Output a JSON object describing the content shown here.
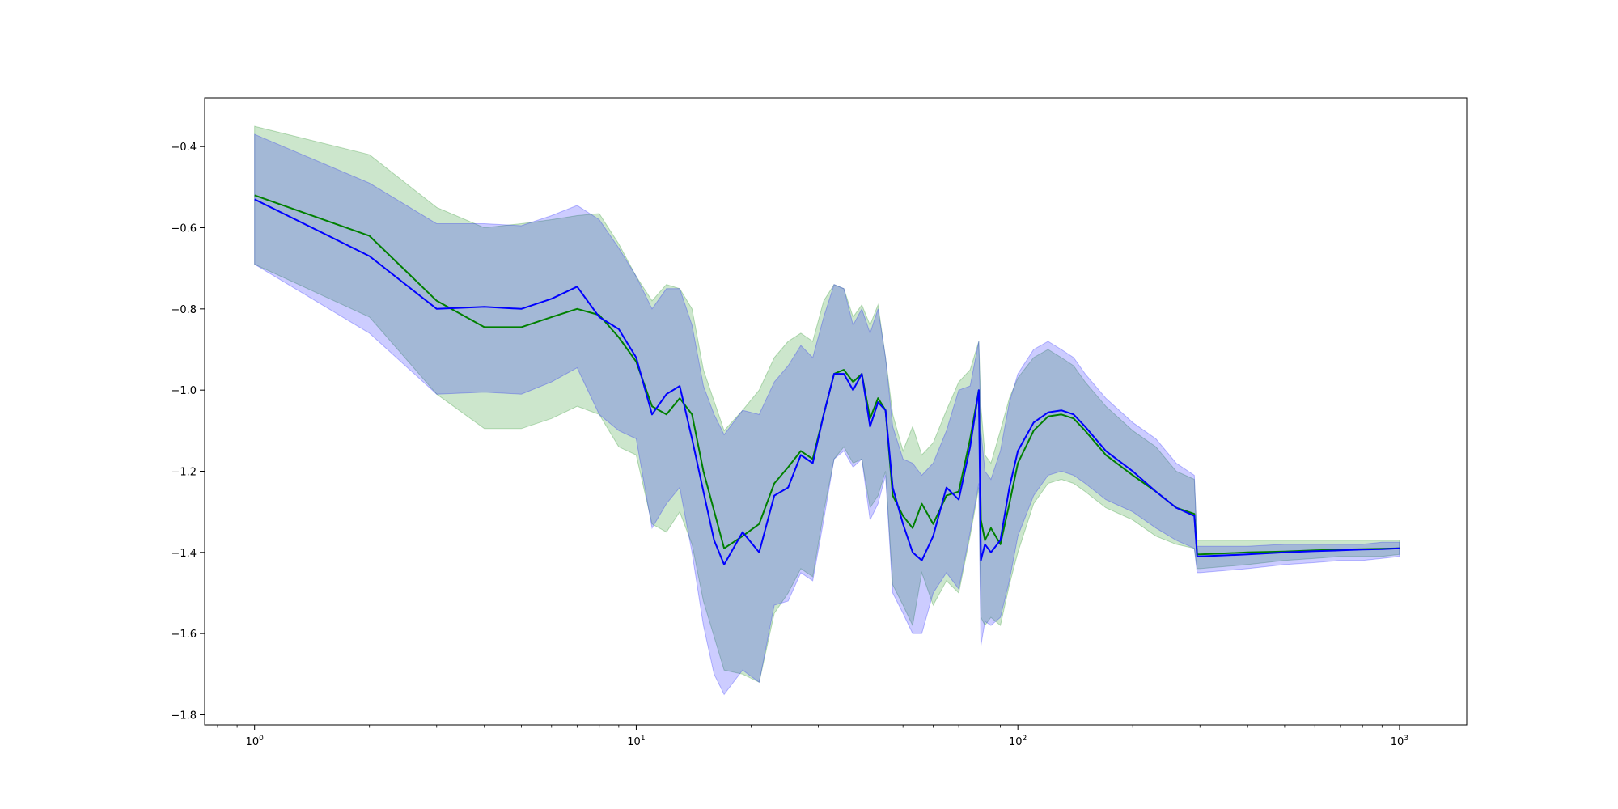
{
  "chart_data": {
    "type": "area",
    "x_scale": "log",
    "xlim": [
      0.74,
      1500
    ],
    "ylim": [
      -1.825,
      -0.28
    ],
    "grid": false,
    "title": "",
    "xlabel": "",
    "ylabel": "",
    "x_ticks": [
      {
        "value": 1,
        "base": "10",
        "exp": "0"
      },
      {
        "value": 10,
        "base": "10",
        "exp": "1"
      },
      {
        "value": 100,
        "base": "10",
        "exp": "2"
      },
      {
        "value": 1000,
        "base": "10",
        "exp": "3"
      }
    ],
    "y_ticks": [
      {
        "value": -0.4,
        "label": "−0.4"
      },
      {
        "value": -0.6,
        "label": "−0.6"
      },
      {
        "value": -0.8,
        "label": "−0.8"
      },
      {
        "value": -1.0,
        "label": "−1.0"
      },
      {
        "value": -1.2,
        "label": "−1.2"
      },
      {
        "value": -1.4,
        "label": "−1.4"
      },
      {
        "value": -1.6,
        "label": "−1.6"
      },
      {
        "value": -1.8,
        "label": "−1.8"
      }
    ],
    "series": [
      {
        "color": "#008000",
        "band_color": "#008000",
        "band_opacity": 0.2,
        "x": [
          1,
          2,
          3,
          4,
          5,
          6,
          7,
          8,
          9,
          10,
          11,
          12,
          13,
          14,
          15,
          17,
          19,
          21,
          23,
          25,
          27,
          29,
          31,
          33,
          35,
          37,
          39,
          41,
          43,
          45,
          47,
          50,
          53,
          56,
          60,
          65,
          70,
          75,
          79,
          80,
          82,
          85,
          90,
          95,
          100,
          110,
          120,
          130,
          140,
          150,
          170,
          200,
          230,
          260,
          290,
          295,
          300,
          400,
          500,
          600,
          700,
          800,
          900,
          1000
        ],
        "mean": [
          -0.52,
          -0.62,
          -0.78,
          -0.845,
          -0.845,
          -0.82,
          -0.8,
          -0.815,
          -0.87,
          -0.93,
          -1.04,
          -1.06,
          -1.02,
          -1.06,
          -1.2,
          -1.39,
          -1.36,
          -1.33,
          -1.23,
          -1.19,
          -1.15,
          -1.17,
          -1.06,
          -0.96,
          -0.95,
          -0.98,
          -0.96,
          -1.07,
          -1.02,
          -1.05,
          -1.26,
          -1.31,
          -1.34,
          -1.28,
          -1.33,
          -1.26,
          -1.25,
          -1.12,
          -1.0,
          -1.32,
          -1.37,
          -1.34,
          -1.38,
          -1.28,
          -1.18,
          -1.1,
          -1.065,
          -1.06,
          -1.07,
          -1.1,
          -1.16,
          -1.21,
          -1.25,
          -1.29,
          -1.305,
          -1.405,
          -1.405,
          -1.4,
          -1.398,
          -1.395,
          -1.393,
          -1.392,
          -1.391,
          -1.39
        ],
        "upper": [
          -0.35,
          -0.42,
          -0.55,
          -0.6,
          -0.59,
          -0.58,
          -0.57,
          -0.565,
          -0.64,
          -0.72,
          -0.78,
          -0.74,
          -0.75,
          -0.8,
          -0.95,
          -1.1,
          -1.05,
          -1.0,
          -0.92,
          -0.88,
          -0.86,
          -0.88,
          -0.78,
          -0.74,
          -0.75,
          -0.82,
          -0.79,
          -0.84,
          -0.79,
          -0.92,
          -1.06,
          -1.15,
          -1.09,
          -1.16,
          -1.13,
          -1.05,
          -0.98,
          -0.95,
          -0.88,
          -1.04,
          -1.16,
          -1.18,
          -1.1,
          -1.02,
          -0.97,
          -0.92,
          -0.9,
          -0.92,
          -0.94,
          -0.98,
          -1.04,
          -1.1,
          -1.14,
          -1.2,
          -1.22,
          -1.37,
          -1.37,
          -1.37,
          -1.37,
          -1.37,
          -1.37,
          -1.37,
          -1.37,
          -1.37
        ],
        "lower": [
          -0.69,
          -0.82,
          -1.01,
          -1.095,
          -1.095,
          -1.07,
          -1.04,
          -1.06,
          -1.14,
          -1.16,
          -1.33,
          -1.35,
          -1.3,
          -1.38,
          -1.52,
          -1.69,
          -1.7,
          -1.72,
          -1.55,
          -1.5,
          -1.44,
          -1.46,
          -1.3,
          -1.17,
          -1.14,
          -1.18,
          -1.17,
          -1.29,
          -1.26,
          -1.2,
          -1.48,
          -1.53,
          -1.58,
          -1.45,
          -1.53,
          -1.47,
          -1.5,
          -1.36,
          -1.24,
          -1.56,
          -1.58,
          -1.56,
          -1.58,
          -1.48,
          -1.4,
          -1.28,
          -1.23,
          -1.22,
          -1.23,
          -1.25,
          -1.29,
          -1.32,
          -1.36,
          -1.38,
          -1.39,
          -1.44,
          -1.44,
          -1.43,
          -1.42,
          -1.415,
          -1.41,
          -1.41,
          -1.41,
          -1.405
        ]
      },
      {
        "color": "#0000ff",
        "band_color": "#0000ff",
        "band_opacity": 0.2,
        "x": [
          1,
          2,
          3,
          4,
          5,
          6,
          7,
          8,
          9,
          10,
          11,
          12,
          13,
          14,
          15,
          16,
          17,
          19,
          21,
          23,
          25,
          27,
          29,
          31,
          33,
          35,
          37,
          39,
          41,
          43,
          45,
          47,
          50,
          53,
          56,
          60,
          65,
          70,
          75,
          79,
          80,
          82,
          85,
          90,
          95,
          100,
          110,
          120,
          130,
          140,
          150,
          170,
          200,
          230,
          260,
          290,
          295,
          300,
          400,
          500,
          600,
          700,
          800,
          900,
          1000
        ],
        "mean": [
          -0.53,
          -0.67,
          -0.8,
          -0.795,
          -0.8,
          -0.775,
          -0.745,
          -0.82,
          -0.85,
          -0.92,
          -1.06,
          -1.01,
          -0.99,
          -1.12,
          -1.25,
          -1.37,
          -1.43,
          -1.35,
          -1.4,
          -1.26,
          -1.24,
          -1.16,
          -1.18,
          -1.06,
          -0.96,
          -0.96,
          -1.0,
          -0.96,
          -1.09,
          -1.03,
          -1.05,
          -1.24,
          -1.33,
          -1.4,
          -1.42,
          -1.36,
          -1.24,
          -1.27,
          -1.14,
          -1.0,
          -1.42,
          -1.38,
          -1.4,
          -1.37,
          -1.24,
          -1.15,
          -1.08,
          -1.055,
          -1.05,
          -1.06,
          -1.09,
          -1.15,
          -1.2,
          -1.25,
          -1.29,
          -1.31,
          -1.41,
          -1.41,
          -1.405,
          -1.4,
          -1.397,
          -1.395,
          -1.393,
          -1.392,
          -1.39
        ],
        "upper": [
          -0.37,
          -0.49,
          -0.59,
          -0.59,
          -0.595,
          -0.57,
          -0.545,
          -0.58,
          -0.65,
          -0.72,
          -0.8,
          -0.75,
          -0.75,
          -0.84,
          -0.99,
          -1.06,
          -1.11,
          -1.05,
          -1.06,
          -0.98,
          -0.94,
          -0.89,
          -0.92,
          -0.82,
          -0.74,
          -0.75,
          -0.84,
          -0.8,
          -0.86,
          -0.8,
          -0.92,
          -1.09,
          -1.17,
          -1.18,
          -1.21,
          -1.18,
          -1.1,
          -1.0,
          -0.99,
          -0.88,
          -1.1,
          -1.2,
          -1.22,
          -1.15,
          -1.03,
          -0.96,
          -0.9,
          -0.88,
          -0.9,
          -0.92,
          -0.96,
          -1.02,
          -1.08,
          -1.12,
          -1.18,
          -1.21,
          -1.385,
          -1.385,
          -1.385,
          -1.38,
          -1.38,
          -1.38,
          -1.38,
          -1.375,
          -1.375
        ],
        "lower": [
          -0.69,
          -0.86,
          -1.01,
          -1.005,
          -1.01,
          -0.98,
          -0.945,
          -1.06,
          -1.1,
          -1.12,
          -1.34,
          -1.28,
          -1.24,
          -1.4,
          -1.58,
          -1.7,
          -1.75,
          -1.69,
          -1.72,
          -1.53,
          -1.52,
          -1.45,
          -1.47,
          -1.32,
          -1.17,
          -1.15,
          -1.19,
          -1.17,
          -1.32,
          -1.28,
          -1.21,
          -1.5,
          -1.55,
          -1.6,
          -1.6,
          -1.5,
          -1.45,
          -1.49,
          -1.35,
          -1.23,
          -1.63,
          -1.57,
          -1.58,
          -1.56,
          -1.47,
          -1.36,
          -1.26,
          -1.21,
          -1.2,
          -1.21,
          -1.23,
          -1.27,
          -1.3,
          -1.34,
          -1.37,
          -1.39,
          -1.45,
          -1.45,
          -1.44,
          -1.43,
          -1.425,
          -1.42,
          -1.42,
          -1.415,
          -1.41
        ]
      }
    ]
  }
}
